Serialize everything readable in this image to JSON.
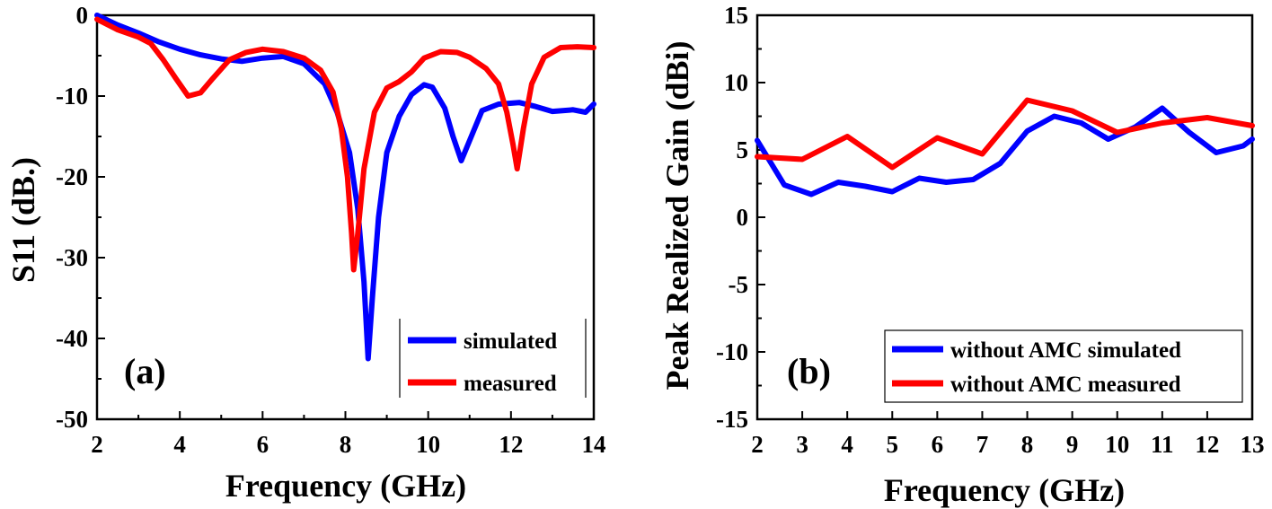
{
  "chart_data": [
    {
      "type": "line",
      "panel_label": "(a)",
      "xlabel": "Frequency (GHz)",
      "ylabel": "S11 (dB.)",
      "xlim": [
        2,
        14
      ],
      "ylim": [
        -50,
        0
      ],
      "xticks": [
        2,
        4,
        6,
        8,
        10,
        12,
        14
      ],
      "yticks": [
        0,
        -10,
        -20,
        -30,
        -40,
        -50
      ],
      "legend_position": "bottom-right",
      "series": [
        {
          "name": "simulated",
          "color": "#0000ff",
          "points": [
            [
              2,
              0
            ],
            [
              2.5,
              -1.2
            ],
            [
              3,
              -2.2
            ],
            [
              3.5,
              -3.3
            ],
            [
              4,
              -4.2
            ],
            [
              4.5,
              -4.9
            ],
            [
              5,
              -5.4
            ],
            [
              5.5,
              -5.7
            ],
            [
              6,
              -5.3
            ],
            [
              6.5,
              -5.1
            ],
            [
              7,
              -6
            ],
            [
              7.5,
              -8.5
            ],
            [
              7.8,
              -12
            ],
            [
              8.1,
              -17
            ],
            [
              8.3,
              -24
            ],
            [
              8.45,
              -33
            ],
            [
              8.55,
              -42.5
            ],
            [
              8.65,
              -35
            ],
            [
              8.8,
              -25
            ],
            [
              9,
              -17
            ],
            [
              9.3,
              -12.5
            ],
            [
              9.6,
              -9.8
            ],
            [
              9.9,
              -8.6
            ],
            [
              10.1,
              -8.9
            ],
            [
              10.4,
              -11.5
            ],
            [
              10.6,
              -15
            ],
            [
              10.8,
              -18
            ],
            [
              11,
              -15.5
            ],
            [
              11.3,
              -11.8
            ],
            [
              11.7,
              -11
            ],
            [
              12.2,
              -10.8
            ],
            [
              12.6,
              -11.3
            ],
            [
              13,
              -11.9
            ],
            [
              13.5,
              -11.7
            ],
            [
              13.8,
              -12
            ],
            [
              14,
              -11
            ]
          ]
        },
        {
          "name": "measured",
          "color": "#ff0000",
          "points": [
            [
              2,
              -0.5
            ],
            [
              2.5,
              -1.8
            ],
            [
              3,
              -2.7
            ],
            [
              3.3,
              -3.5
            ],
            [
              3.6,
              -5.5
            ],
            [
              3.9,
              -7.8
            ],
            [
              4.2,
              -10
            ],
            [
              4.5,
              -9.6
            ],
            [
              4.8,
              -7.8
            ],
            [
              5.2,
              -5.5
            ],
            [
              5.6,
              -4.6
            ],
            [
              6,
              -4.2
            ],
            [
              6.5,
              -4.5
            ],
            [
              7,
              -5.3
            ],
            [
              7.4,
              -6.8
            ],
            [
              7.7,
              -9.5
            ],
            [
              7.9,
              -14
            ],
            [
              8.05,
              -20
            ],
            [
              8.15,
              -27
            ],
            [
              8.2,
              -31.5
            ],
            [
              8.3,
              -27
            ],
            [
              8.45,
              -19
            ],
            [
              8.7,
              -12
            ],
            [
              9,
              -9
            ],
            [
              9.3,
              -8.2
            ],
            [
              9.6,
              -7
            ],
            [
              9.9,
              -5.3
            ],
            [
              10.3,
              -4.5
            ],
            [
              10.7,
              -4.6
            ],
            [
              11,
              -5.2
            ],
            [
              11.4,
              -6.6
            ],
            [
              11.7,
              -8.5
            ],
            [
              11.9,
              -12
            ],
            [
              12.05,
              -16
            ],
            [
              12.15,
              -19
            ],
            [
              12.3,
              -14
            ],
            [
              12.5,
              -8.5
            ],
            [
              12.8,
              -5.2
            ],
            [
              13.2,
              -4
            ],
            [
              13.6,
              -3.9
            ],
            [
              14,
              -4
            ]
          ]
        }
      ]
    },
    {
      "type": "line",
      "panel_label": "(b)",
      "xlabel": "Frequency (GHz)",
      "ylabel": "Peak Realized Gain (dBi)",
      "xlim": [
        2,
        13
      ],
      "ylim": [
        -15,
        15
      ],
      "xticks": [
        2,
        3,
        4,
        5,
        6,
        7,
        8,
        9,
        10,
        11,
        12,
        13
      ],
      "yticks": [
        15,
        10,
        5,
        0,
        -5,
        -10,
        -15
      ],
      "legend_position": "bottom-right",
      "series": [
        {
          "name": "without AMC simulated",
          "color": "#0000ff",
          "points": [
            [
              2,
              5.7
            ],
            [
              2.6,
              2.4
            ],
            [
              3.2,
              1.7
            ],
            [
              3.8,
              2.6
            ],
            [
              4.4,
              2.3
            ],
            [
              5,
              1.9
            ],
            [
              5.6,
              2.9
            ],
            [
              6.2,
              2.6
            ],
            [
              6.8,
              2.8
            ],
            [
              7.4,
              4
            ],
            [
              8,
              6.4
            ],
            [
              8.6,
              7.5
            ],
            [
              9.2,
              7
            ],
            [
              9.8,
              5.8
            ],
            [
              10.4,
              6.7
            ],
            [
              11,
              8.1
            ],
            [
              11.6,
              6.3
            ],
            [
              12.2,
              4.8
            ],
            [
              12.8,
              5.3
            ],
            [
              13,
              5.8
            ]
          ]
        },
        {
          "name": "without AMC measured",
          "color": "#ff0000",
          "points": [
            [
              2,
              4.5
            ],
            [
              3,
              4.3
            ],
            [
              4,
              6
            ],
            [
              5,
              3.7
            ],
            [
              6,
              5.9
            ],
            [
              7,
              4.7
            ],
            [
              8,
              8.7
            ],
            [
              9,
              7.9
            ],
            [
              10,
              6.3
            ],
            [
              11,
              7
            ],
            [
              12,
              7.4
            ],
            [
              13,
              6.8
            ]
          ]
        }
      ]
    }
  ]
}
